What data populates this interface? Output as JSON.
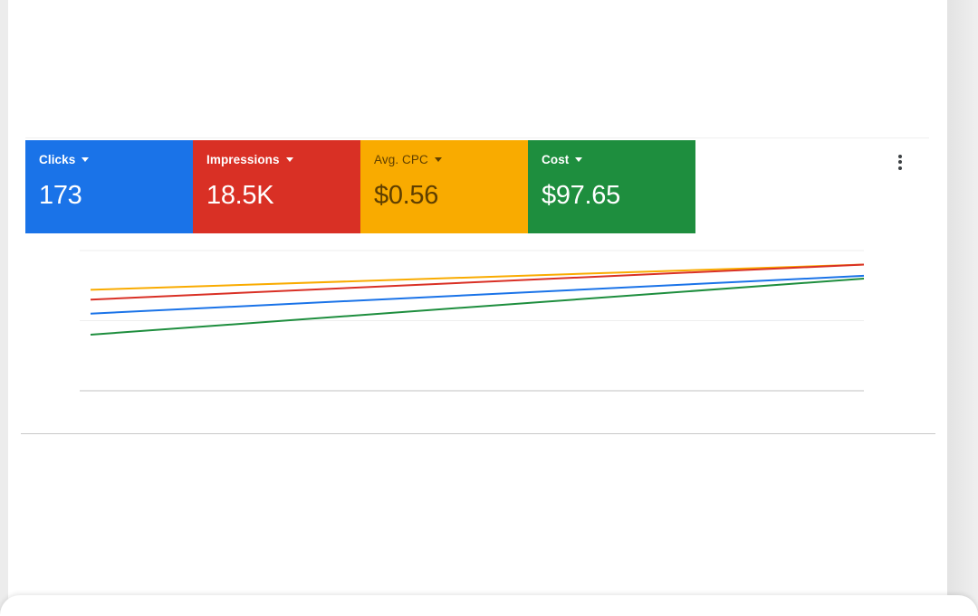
{
  "metrics": [
    {
      "label": "Clicks",
      "value": "173",
      "color": "#1a73e8"
    },
    {
      "label": "Impressions",
      "value": "18.5K",
      "color": "#d93025"
    },
    {
      "label": "Avg. CPC",
      "value": "$0.56",
      "color": "#f9ab00"
    },
    {
      "label": "Cost",
      "value": "$97.65",
      "color": "#1e8e3e"
    }
  ],
  "chart_data": {
    "type": "line",
    "x": [
      0,
      1
    ],
    "series": [
      {
        "values": [
          0.72,
          0.9
        ],
        "color": "#f9ab00"
      },
      {
        "values": [
          0.65,
          0.9
        ],
        "color": "#d93025"
      },
      {
        "values": [
          0.55,
          0.82
        ],
        "color": "#1a73e8"
      },
      {
        "values": [
          0.4,
          0.8
        ],
        "color": "#1e8e3e"
      }
    ],
    "ylim": [
      0,
      1
    ],
    "grid": true,
    "gridlines": 3
  },
  "menu": {
    "icon": "more-vert-icon"
  }
}
